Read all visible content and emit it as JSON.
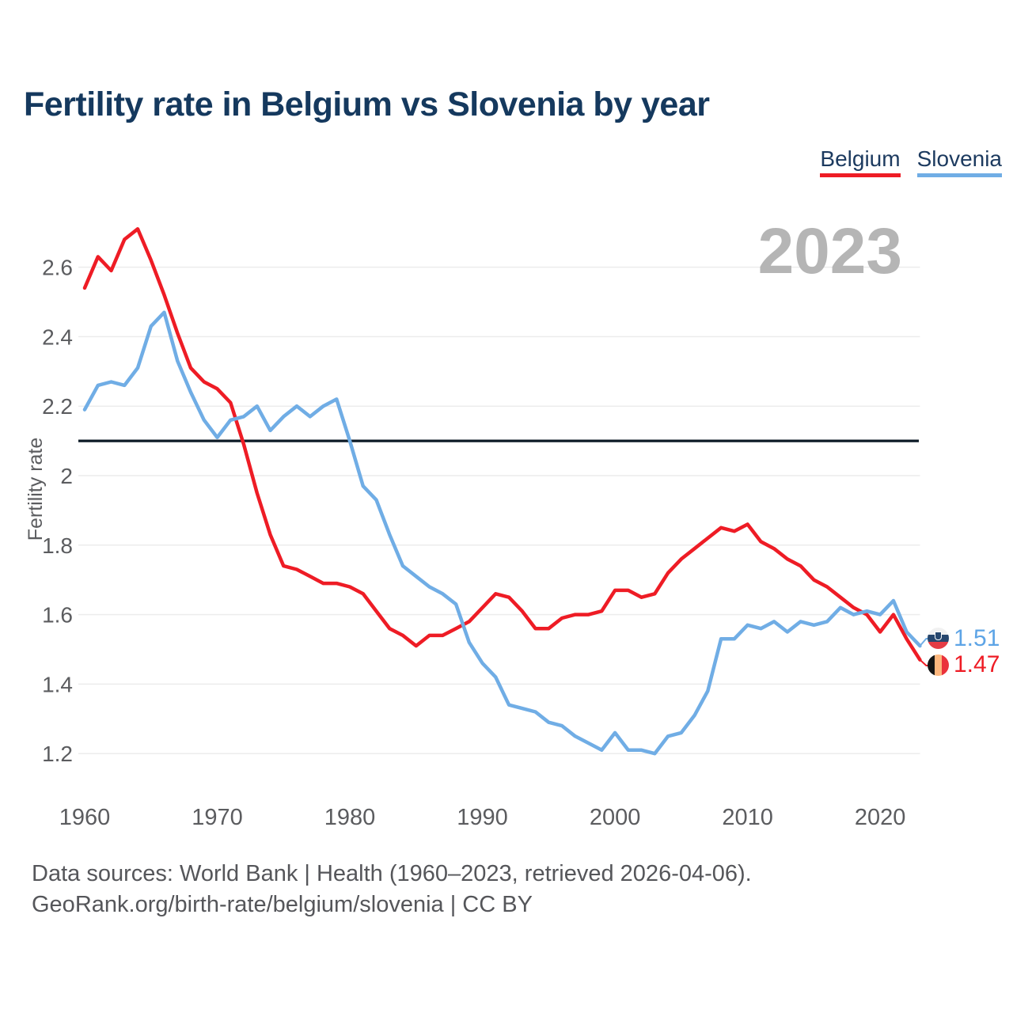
{
  "title": "Fertility rate in Belgium vs Slovenia by year",
  "watermark": "2023",
  "watermark_color": "#b5b5b5",
  "legend": {
    "items": [
      {
        "label": "Belgium",
        "color": "#ee1c25"
      },
      {
        "label": "Slovenia",
        "color": "#70ade5"
      }
    ]
  },
  "end_labels": [
    {
      "country": "Slovenia",
      "value": "1.51",
      "color": "#5da4e6",
      "flag": "slovenia-flag"
    },
    {
      "country": "Belgium",
      "value": "1.47",
      "color": "#ee1c25",
      "flag": "belgium-flag"
    }
  ],
  "footer": {
    "line1": "Data sources: World Bank | Health (1960–2023, retrieved 2026-04-06).",
    "line2": "GeoRank.org/birth-rate/belgium/slovenia | CC BY"
  },
  "chart_data": {
    "type": "line",
    "title": "Fertility rate in Belgium vs Slovenia by year",
    "xlabel": "",
    "ylabel": "Fertility rate",
    "x_start": 1960,
    "x_end": 2023,
    "x_ticks": [
      1960,
      1970,
      1980,
      1990,
      2000,
      2010,
      2020
    ],
    "y_ticks": [
      1.2,
      1.4,
      1.6,
      1.8,
      2.0,
      2.2,
      2.4,
      2.6
    ],
    "ylim": [
      1.1,
      2.78
    ],
    "grid": true,
    "grid_color": "#ececec",
    "axis_text_color": "#5b5c5f",
    "legend_position": "top-right",
    "ref_line": {
      "value": 2.1,
      "color": "#0c1a26",
      "meaning": "replacement-rate line"
    },
    "series": [
      {
        "name": "Belgium",
        "color": "#ee1c25",
        "end_label": "1.47",
        "values": [
          2.54,
          2.63,
          2.59,
          2.68,
          2.71,
          2.62,
          2.52,
          2.41,
          2.31,
          2.27,
          2.25,
          2.21,
          2.09,
          1.95,
          1.83,
          1.74,
          1.73,
          1.71,
          1.69,
          1.69,
          1.68,
          1.66,
          1.61,
          1.56,
          1.54,
          1.51,
          1.54,
          1.54,
          1.56,
          1.58,
          1.62,
          1.66,
          1.65,
          1.61,
          1.56,
          1.56,
          1.59,
          1.6,
          1.6,
          1.61,
          1.67,
          1.67,
          1.65,
          1.66,
          1.72,
          1.76,
          1.79,
          1.82,
          1.85,
          1.84,
          1.86,
          1.81,
          1.79,
          1.76,
          1.74,
          1.7,
          1.68,
          1.65,
          1.62,
          1.6,
          1.55,
          1.6,
          1.53,
          1.47
        ]
      },
      {
        "name": "Slovenia",
        "color": "#70ade5",
        "end_label": "1.51",
        "values": [
          2.19,
          2.26,
          2.27,
          2.26,
          2.31,
          2.43,
          2.47,
          2.33,
          2.24,
          2.16,
          2.11,
          2.16,
          2.17,
          2.2,
          2.13,
          2.17,
          2.2,
          2.17,
          2.2,
          2.22,
          2.1,
          1.97,
          1.93,
          1.83,
          1.74,
          1.71,
          1.68,
          1.66,
          1.63,
          1.52,
          1.46,
          1.42,
          1.34,
          1.33,
          1.32,
          1.29,
          1.28,
          1.25,
          1.23,
          1.21,
          1.26,
          1.21,
          1.21,
          1.2,
          1.25,
          1.26,
          1.31,
          1.38,
          1.53,
          1.53,
          1.57,
          1.56,
          1.58,
          1.55,
          1.58,
          1.57,
          1.58,
          1.62,
          1.6,
          1.61,
          1.6,
          1.64,
          1.55,
          1.51
        ]
      }
    ]
  }
}
